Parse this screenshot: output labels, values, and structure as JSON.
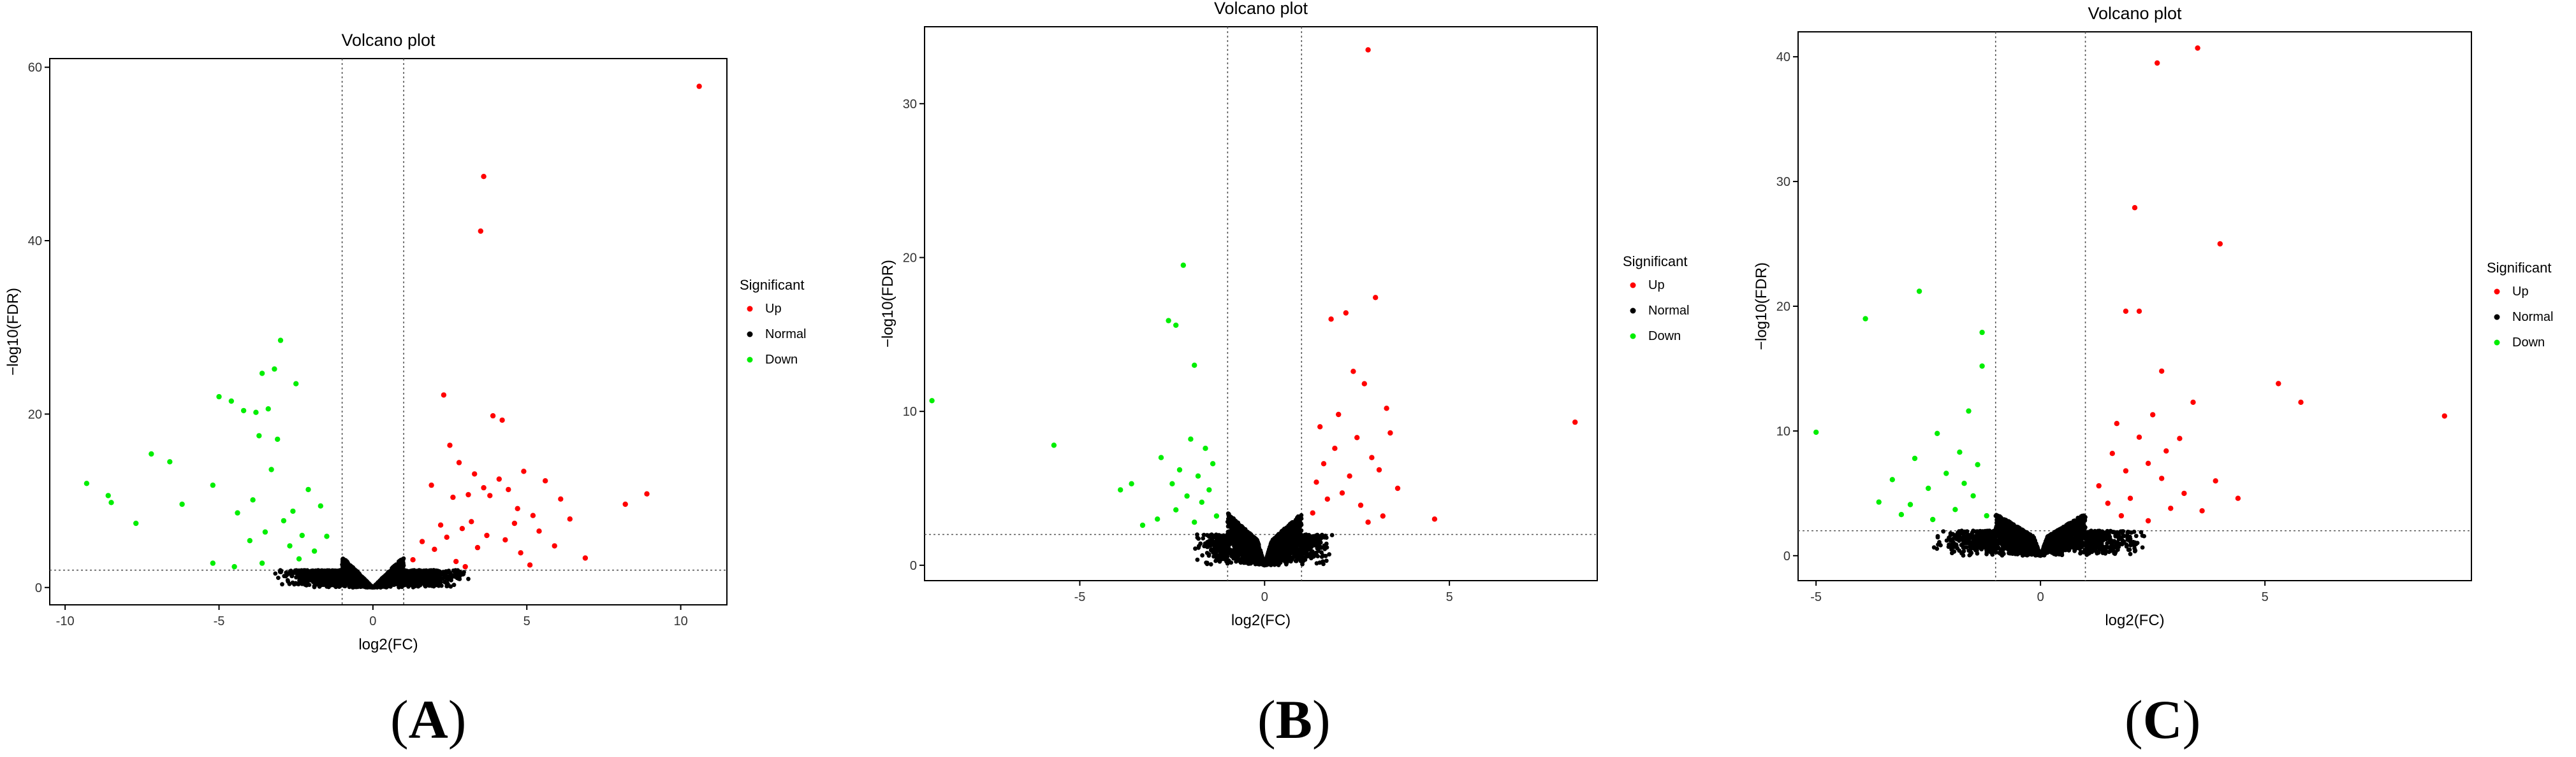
{
  "figure": {
    "panel_labels": [
      {
        "open": "(",
        "letter": "A",
        "close": ")"
      },
      {
        "open": "(",
        "letter": "B",
        "close": ")"
      },
      {
        "open": "(",
        "letter": "C",
        "close": ")"
      }
    ]
  },
  "chart_data": [
    {
      "type": "scatter",
      "title": "Volcano plot",
      "xlabel": "log2(FC)",
      "ylabel": "−log10(FDR)",
      "xlim": [
        -10.5,
        11.5
      ],
      "ylim": [
        -2,
        61
      ],
      "xticks": [
        -10,
        -5,
        0,
        5,
        10
      ],
      "yticks": [
        0,
        20,
        40,
        60
      ],
      "fc_threshold_lines": [
        -1,
        1
      ],
      "fdr_threshold_line": 2,
      "grid": false,
      "legend": {
        "title": "Significant",
        "position": "right",
        "entries": [
          "Up",
          "Normal",
          "Down"
        ]
      },
      "colors": {
        "Up": "#ff0000",
        "Normal": "#000000",
        "Down": "#00ee00"
      },
      "series": [
        {
          "name": "Up",
          "points": [
            [
              10.6,
              57.8
            ],
            [
              3.6,
              47.4
            ],
            [
              3.5,
              41.1
            ],
            [
              2.3,
              22.2
            ],
            [
              3.9,
              19.8
            ],
            [
              4.2,
              19.3
            ],
            [
              2.5,
              16.4
            ],
            [
              2.8,
              14.4
            ],
            [
              4.9,
              13.4
            ],
            [
              3.3,
              13.1
            ],
            [
              4.1,
              12.5
            ],
            [
              5.6,
              12.3
            ],
            [
              1.9,
              11.8
            ],
            [
              3.6,
              11.5
            ],
            [
              4.4,
              11.3
            ],
            [
              8.9,
              10.8
            ],
            [
              3.1,
              10.7
            ],
            [
              3.8,
              10.6
            ],
            [
              2.6,
              10.4
            ],
            [
              6.1,
              10.2
            ],
            [
              8.2,
              9.6
            ],
            [
              4.7,
              9.1
            ],
            [
              5.2,
              8.3
            ],
            [
              6.4,
              7.9
            ],
            [
              3.2,
              7.6
            ],
            [
              4.6,
              7.4
            ],
            [
              2.2,
              7.2
            ],
            [
              2.9,
              6.8
            ],
            [
              5.4,
              6.5
            ],
            [
              3.7,
              6.0
            ],
            [
              2.4,
              5.8
            ],
            [
              4.3,
              5.5
            ],
            [
              1.6,
              5.3
            ],
            [
              5.9,
              4.8
            ],
            [
              3.4,
              4.6
            ],
            [
              2.0,
              4.4
            ],
            [
              4.8,
              4.0
            ],
            [
              6.9,
              3.4
            ],
            [
              1.3,
              3.2
            ],
            [
              2.7,
              3.0
            ],
            [
              5.1,
              2.6
            ],
            [
              3.0,
              2.4
            ]
          ]
        },
        {
          "name": "Down",
          "points": [
            [
              -3.0,
              28.5
            ],
            [
              -3.2,
              25.2
            ],
            [
              -3.6,
              24.7
            ],
            [
              -2.5,
              23.5
            ],
            [
              -5.0,
              22.0
            ],
            [
              -4.6,
              21.5
            ],
            [
              -3.4,
              20.6
            ],
            [
              -4.2,
              20.4
            ],
            [
              -3.8,
              20.2
            ],
            [
              -3.7,
              17.5
            ],
            [
              -3.1,
              17.1
            ],
            [
              -7.2,
              15.4
            ],
            [
              -6.6,
              14.5
            ],
            [
              -3.3,
              13.6
            ],
            [
              -9.3,
              12.0
            ],
            [
              -5.2,
              11.8
            ],
            [
              -8.6,
              10.6
            ],
            [
              -8.5,
              9.8
            ],
            [
              -3.9,
              10.1
            ],
            [
              -6.2,
              9.6
            ],
            [
              -2.1,
              11.3
            ],
            [
              -2.6,
              8.8
            ],
            [
              -7.7,
              7.4
            ],
            [
              -4.4,
              8.6
            ],
            [
              -1.7,
              9.4
            ],
            [
              -2.9,
              7.7
            ],
            [
              -3.5,
              6.4
            ],
            [
              -2.3,
              6.0
            ],
            [
              -4.0,
              5.4
            ],
            [
              -1.5,
              5.9
            ],
            [
              -2.7,
              4.8
            ],
            [
              -5.2,
              2.8
            ],
            [
              -4.5,
              2.4
            ],
            [
              -3.6,
              2.8
            ],
            [
              -1.9,
              4.2
            ],
            [
              -2.4,
              3.3
            ]
          ]
        }
      ],
      "normal_region": {
        "x_range": [
          -5.6,
          6.2
        ],
        "fdr_cap_inside": 3.6,
        "fdr_cap_outside": 2.0
      }
    },
    {
      "type": "scatter",
      "title": "Volcano plot",
      "xlabel": "log2(FC)",
      "ylabel": "−log10(FDR)",
      "xlim": [
        -9.2,
        9.0
      ],
      "ylim": [
        -1,
        35
      ],
      "xticks": [
        -5,
        0,
        5
      ],
      "yticks": [
        0,
        10,
        20,
        30
      ],
      "fc_threshold_lines": [
        -1,
        1
      ],
      "fdr_threshold_line": 2,
      "grid": false,
      "legend": {
        "title": "Significant",
        "position": "right",
        "entries": [
          "Up",
          "Normal",
          "Down"
        ]
      },
      "colors": {
        "Up": "#ff0000",
        "Normal": "#000000",
        "Down": "#00ee00"
      },
      "series": [
        {
          "name": "Up",
          "points": [
            [
              2.8,
              33.5
            ],
            [
              3.0,
              17.4
            ],
            [
              2.2,
              16.4
            ],
            [
              1.8,
              16.0
            ],
            [
              2.4,
              12.6
            ],
            [
              2.7,
              11.8
            ],
            [
              3.3,
              10.2
            ],
            [
              2.0,
              9.8
            ],
            [
              8.4,
              9.3
            ],
            [
              1.5,
              9.0
            ],
            [
              3.4,
              8.6
            ],
            [
              2.5,
              8.3
            ],
            [
              1.9,
              7.6
            ],
            [
              2.9,
              7.0
            ],
            [
              1.6,
              6.6
            ],
            [
              3.1,
              6.2
            ],
            [
              2.3,
              5.8
            ],
            [
              1.4,
              5.4
            ],
            [
              3.6,
              5.0
            ],
            [
              2.1,
              4.7
            ],
            [
              1.7,
              4.3
            ],
            [
              2.6,
              3.9
            ],
            [
              4.6,
              3.0
            ],
            [
              1.3,
              3.4
            ],
            [
              3.2,
              3.2
            ],
            [
              2.8,
              2.8
            ]
          ]
        },
        {
          "name": "Down",
          "points": [
            [
              -2.2,
              19.5
            ],
            [
              -2.6,
              15.9
            ],
            [
              -2.4,
              15.6
            ],
            [
              -1.9,
              13.0
            ],
            [
              -9.0,
              10.7
            ],
            [
              -5.7,
              7.8
            ],
            [
              -3.6,
              5.3
            ],
            [
              -3.9,
              4.9
            ],
            [
              -2.0,
              8.2
            ],
            [
              -1.6,
              7.6
            ],
            [
              -2.8,
              7.0
            ],
            [
              -1.4,
              6.6
            ],
            [
              -2.3,
              6.2
            ],
            [
              -1.8,
              5.8
            ],
            [
              -2.5,
              5.3
            ],
            [
              -1.5,
              4.9
            ],
            [
              -2.1,
              4.5
            ],
            [
              -1.7,
              4.1
            ],
            [
              -2.4,
              3.6
            ],
            [
              -1.3,
              3.2
            ],
            [
              -2.9,
              3.0
            ],
            [
              -3.3,
              2.6
            ],
            [
              -1.9,
              2.8
            ]
          ]
        }
      ],
      "normal_region": {
        "x_range": [
          -3.6,
          3.6
        ],
        "fdr_cap_inside": 8.5,
        "fdr_cap_outside": 2.0
      }
    },
    {
      "type": "scatter",
      "title": "Volcano plot",
      "xlabel": "log2(FC)",
      "ylabel": "−log10(FDR)",
      "xlim": [
        -5.4,
        9.6
      ],
      "ylim": [
        -2,
        42
      ],
      "xticks": [
        -5,
        0,
        5
      ],
      "yticks": [
        0,
        10,
        20,
        30,
        40
      ],
      "fc_threshold_lines": [
        -1,
        1
      ],
      "fdr_threshold_line": 2,
      "grid": false,
      "legend": {
        "title": "Significant",
        "position": "right",
        "entries": [
          "Up",
          "Normal",
          "Down"
        ]
      },
      "colors": {
        "Up": "#ff0000",
        "Normal": "#000000",
        "Down": "#00ee00"
      },
      "series": [
        {
          "name": "Up",
          "points": [
            [
              3.5,
              40.7
            ],
            [
              2.6,
              39.5
            ],
            [
              2.1,
              27.9
            ],
            [
              4.0,
              25.0
            ],
            [
              2.2,
              19.6
            ],
            [
              1.9,
              19.6
            ],
            [
              5.3,
              13.8
            ],
            [
              2.7,
              14.8
            ],
            [
              5.8,
              12.3
            ],
            [
              3.4,
              12.3
            ],
            [
              2.5,
              11.3
            ],
            [
              9.0,
              11.2
            ],
            [
              1.7,
              10.6
            ],
            [
              2.2,
              9.5
            ],
            [
              3.1,
              9.4
            ],
            [
              2.8,
              8.4
            ],
            [
              1.6,
              8.2
            ],
            [
              3.9,
              6.0
            ],
            [
              2.4,
              7.4
            ],
            [
              1.9,
              6.8
            ],
            [
              4.4,
              4.6
            ],
            [
              2.7,
              6.2
            ],
            [
              1.3,
              5.6
            ],
            [
              3.2,
              5.0
            ],
            [
              2.0,
              4.6
            ],
            [
              1.5,
              4.2
            ],
            [
              2.9,
              3.8
            ],
            [
              3.6,
              3.6
            ],
            [
              1.8,
              3.2
            ],
            [
              2.4,
              2.8
            ]
          ]
        },
        {
          "name": "Down",
          "points": [
            [
              -2.7,
              21.2
            ],
            [
              -3.9,
              19.0
            ],
            [
              -1.3,
              17.9
            ],
            [
              -5.0,
              9.9
            ],
            [
              -1.3,
              15.2
            ],
            [
              -1.6,
              11.6
            ],
            [
              -2.3,
              9.8
            ],
            [
              -1.8,
              8.3
            ],
            [
              -2.8,
              7.8
            ],
            [
              -1.4,
              7.3
            ],
            [
              -2.1,
              6.6
            ],
            [
              -3.3,
              6.1
            ],
            [
              -1.7,
              5.8
            ],
            [
              -2.5,
              5.4
            ],
            [
              -3.6,
              4.3
            ],
            [
              -1.5,
              4.8
            ],
            [
              -2.9,
              4.1
            ],
            [
              -1.9,
              3.7
            ],
            [
              -3.1,
              3.3
            ],
            [
              -1.2,
              3.2
            ],
            [
              -2.4,
              2.9
            ]
          ]
        }
      ],
      "normal_region": {
        "x_range": [
          -4.0,
          4.6
        ],
        "fdr_cap_inside": 10.0,
        "fdr_cap_outside": 2.0
      }
    }
  ]
}
